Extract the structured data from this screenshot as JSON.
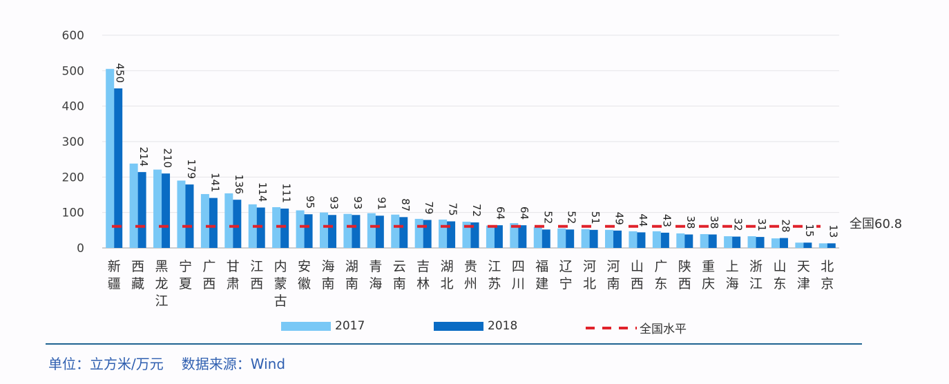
{
  "chart_data": {
    "type": "bar",
    "title": "",
    "xlabel": "",
    "ylabel": "",
    "unit_note": "单位：立方米/万元",
    "ylim": [
      0,
      600
    ],
    "yticks": [
      0,
      100,
      200,
      300,
      400,
      500,
      600
    ],
    "grid": true,
    "legend_position": "bottom",
    "categories": [
      "新疆",
      "西藏",
      "黑龙江",
      "宁夏",
      "广西",
      "甘肃",
      "江西",
      "内蒙古",
      "安徽",
      "海南",
      "湖南",
      "青海",
      "云南",
      "吉林",
      "湖北",
      "贵州",
      "江苏",
      "四川",
      "福建",
      "辽宁",
      "河北",
      "河南",
      "山西",
      "广东",
      "陕西",
      "重庆",
      "上海",
      "浙江",
      "山东",
      "天津",
      "北京"
    ],
    "series": [
      {
        "name": "2017",
        "color": "#79c8f6",
        "values": [
          505,
          238,
          221,
          190,
          152,
          154,
          123,
          115,
          106,
          100,
          96,
          98,
          94,
          82,
          80,
          74,
          63,
          70,
          59,
          55,
          53,
          51,
          47,
          47,
          41,
          39,
          33,
          33,
          27,
          15,
          13
        ]
      },
      {
        "name": "2018",
        "color": "#0a6cc4",
        "values": [
          450,
          214,
          210,
          179,
          141,
          136,
          114,
          111,
          95,
          93,
          93,
          91,
          87,
          79,
          75,
          72,
          64,
          64,
          52,
          52,
          51,
          49,
          44,
          43,
          38,
          38,
          32,
          31,
          28,
          15,
          13
        ]
      }
    ],
    "data_labels_series": "2018",
    "reference_line": {
      "name": "全国水平",
      "value": 60.8,
      "label": "全国60.8",
      "color": "#e0222b",
      "style": "dashed"
    }
  },
  "legend": {
    "items": [
      {
        "label": "2017",
        "color": "#79c8f6"
      },
      {
        "label": "2018",
        "color": "#0a6cc4"
      },
      {
        "label": "全国水平",
        "color": "#e0222b"
      }
    ]
  },
  "footer": {
    "unit": "单位：立方米/万元",
    "source": "数据来源：Wind"
  }
}
